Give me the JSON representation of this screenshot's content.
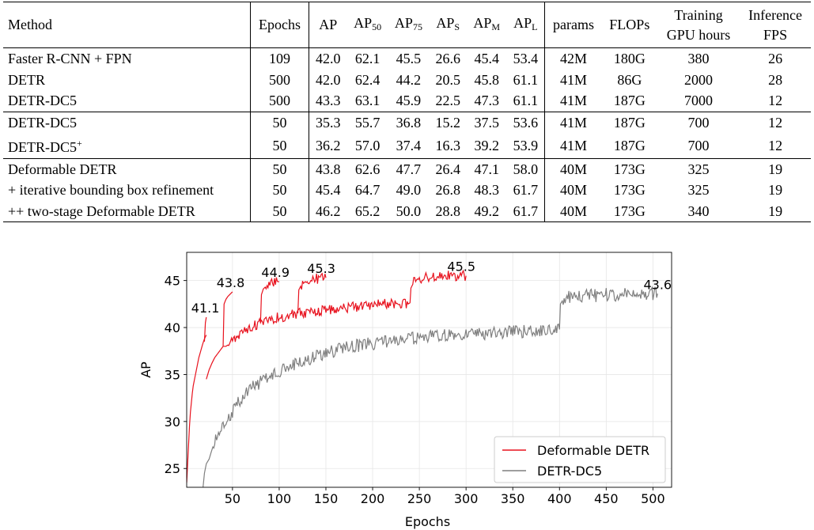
{
  "table": {
    "header": {
      "method": "Method",
      "epochs": "Epochs",
      "ap": "AP",
      "ap50": {
        "base": "AP",
        "sub": "50"
      },
      "ap75": {
        "base": "AP",
        "sub": "75"
      },
      "aps": {
        "base": "AP",
        "sub": "S"
      },
      "apm": {
        "base": "AP",
        "sub": "M"
      },
      "apl": {
        "base": "AP",
        "sub": "L"
      },
      "params": "params",
      "flops": "FLOPs",
      "training": {
        "line1": "Training",
        "line2": "GPU hours"
      },
      "inference": {
        "line1": "Inference",
        "line2": "FPS"
      }
    },
    "rows": [
      {
        "method": "Faster R-CNN + FPN",
        "sup": "",
        "epochs": "109",
        "ap": "42.0",
        "ap50": "62.1",
        "ap75": "45.5",
        "aps": "26.6",
        "apm": "45.4",
        "apl": "53.4",
        "params": "42M",
        "flops": "180G",
        "gpu_hours": "380",
        "fps": "26"
      },
      {
        "method": "DETR",
        "sup": "",
        "epochs": "500",
        "ap": "42.0",
        "ap50": "62.4",
        "ap75": "44.2",
        "aps": "20.5",
        "apm": "45.8",
        "apl": "61.1",
        "params": "41M",
        "flops": "86G",
        "gpu_hours": "2000",
        "fps": "28"
      },
      {
        "method": "DETR-DC5",
        "sup": "",
        "epochs": "500",
        "ap": "43.3",
        "ap50": "63.1",
        "ap75": "45.9",
        "aps": "22.5",
        "apm": "47.3",
        "apl": "61.1",
        "params": "41M",
        "flops": "187G",
        "gpu_hours": "7000",
        "fps": "12"
      },
      {
        "method": "DETR-DC5",
        "sup": "",
        "epochs": "50",
        "ap": "35.3",
        "ap50": "55.7",
        "ap75": "36.8",
        "aps": "15.2",
        "apm": "37.5",
        "apl": "53.6",
        "params": "41M",
        "flops": "187G",
        "gpu_hours": "700",
        "fps": "12"
      },
      {
        "method": "DETR-DC5",
        "sup": "+",
        "epochs": "50",
        "ap": "36.2",
        "ap50": "57.0",
        "ap75": "37.4",
        "aps": "16.3",
        "apm": "39.2",
        "apl": "53.9",
        "params": "41M",
        "flops": "187G",
        "gpu_hours": "700",
        "fps": "12"
      },
      {
        "method": "Deformable DETR",
        "sup": "",
        "epochs": "50",
        "ap": "43.8",
        "ap50": "62.6",
        "ap75": "47.7",
        "aps": "26.4",
        "apm": "47.1",
        "apl": "58.0",
        "params": "40M",
        "flops": "173G",
        "gpu_hours": "325",
        "fps": "19"
      },
      {
        "method": "+ iterative bounding box refinement",
        "sup": "",
        "epochs": "50",
        "ap": "45.4",
        "ap50": "64.7",
        "ap75": "49.0",
        "aps": "26.8",
        "apm": "48.3",
        "apl": "61.7",
        "params": "40M",
        "flops": "173G",
        "gpu_hours": "325",
        "fps": "19"
      },
      {
        "method": "++ two-stage Deformable DETR",
        "sup": "",
        "epochs": "50",
        "ap": "46.2",
        "ap50": "65.2",
        "ap75": "50.0",
        "aps": "28.8",
        "apm": "49.2",
        "apl": "61.7",
        "params": "40M",
        "flops": "173G",
        "gpu_hours": "340",
        "fps": "19"
      }
    ]
  },
  "chart_data": {
    "type": "line",
    "xlabel": "Epochs",
    "ylabel": "AP",
    "xlim": [
      1,
      520
    ],
    "ylim": [
      23,
      48
    ],
    "x_ticks": [
      "50",
      "100",
      "150",
      "200",
      "250",
      "300",
      "350",
      "400",
      "450",
      "500"
    ],
    "y_ticks": [
      "25",
      "30",
      "35",
      "40",
      "45"
    ],
    "grid": true,
    "legend_position": "bottom-right",
    "series": [
      {
        "name": "Deformable DETR",
        "color": "#e8121e",
        "segments": [
          {
            "x": [
              1,
              2,
              3,
              4,
              5,
              6,
              7,
              8,
              10,
              12,
              14,
              16,
              18,
              20,
              22
            ],
            "y": [
              23.5,
              25.5,
              27.5,
              29.5,
              31.0,
              32.0,
              33.0,
              33.8,
              34.8,
              35.8,
              36.8,
              37.5,
              38.2,
              38.8,
              39.2
            ]
          },
          {
            "x": [
              20,
              21,
              22
            ],
            "y": [
              38.5,
              40.5,
              41.1
            ]
          },
          {
            "x": [
              22,
              25,
              28,
              31,
              34,
              37,
              40,
              43,
              46,
              50,
              55,
              60,
              65,
              70,
              75,
              80,
              85,
              90,
              95,
              100,
              105,
              110,
              115,
              120,
              130,
              140,
              150,
              160,
              170,
              180,
              190,
              200,
              210,
              220,
              230,
              240
            ],
            "y": [
              34.5,
              35.5,
              36.2,
              36.8,
              37.2,
              37.6,
              38.0,
              38.0,
              38.2,
              38.6,
              39.0,
              39.4,
              39.8,
              40.1,
              40.3,
              40.5,
              40.7,
              40.9,
              41.0,
              41.1,
              41.2,
              41.3,
              41.4,
              41.5,
              41.6,
              41.7,
              41.9,
              42.0,
              42.1,
              42.2,
              42.3,
              42.4,
              42.5,
              42.5,
              42.6,
              42.6
            ]
          },
          {
            "x": [
              40,
              41,
              43,
              45,
              47,
              50
            ],
            "y": [
              38.0,
              42.5,
              43.0,
              43.3,
              43.5,
              43.8
            ]
          },
          {
            "x": [
              80,
              81,
              83,
              86,
              90,
              95,
              100
            ],
            "y": [
              40.5,
              43.5,
              44.1,
              44.4,
              44.6,
              44.8,
              44.9
            ]
          },
          {
            "x": [
              120,
              121,
              124,
              128,
              134,
              140,
              150
            ],
            "y": [
              41.5,
              44.0,
              44.6,
              44.9,
              45.1,
              45.2,
              45.3
            ]
          },
          {
            "x": [
              240,
              241,
              244,
              248,
              255,
              265,
              275,
              285,
              300
            ],
            "y": [
              42.6,
              44.2,
              44.8,
              45.1,
              45.3,
              45.4,
              45.5,
              45.5,
              45.5
            ]
          }
        ]
      },
      {
        "name": "DETR-DC5",
        "color": "#7f7f7f",
        "segments": [
          {
            "x": [
              18,
              20,
              22,
              25,
              28,
              32,
              36,
              40,
              45,
              50,
              55,
              60,
              65,
              70,
              80,
              90,
              100,
              110,
              120,
              130,
              140,
              150,
              160,
              170,
              180,
              190,
              200,
              210,
              220,
              230,
              240,
              250,
              260,
              270,
              280,
              290,
              300,
              310,
              320,
              330,
              340,
              350,
              360,
              370,
              380,
              390,
              400
            ],
            "y": [
              22.5,
              24.5,
              25.5,
              26.0,
              27.0,
              28.0,
              28.8,
              29.5,
              30.3,
              31.0,
              31.8,
              32.5,
              33.0,
              33.5,
              34.2,
              34.8,
              35.3,
              35.8,
              36.2,
              36.6,
              37.0,
              37.3,
              37.6,
              37.8,
              38.0,
              38.2,
              38.3,
              38.5,
              38.6,
              38.7,
              38.8,
              38.9,
              39.0,
              39.1,
              39.2,
              39.2,
              39.3,
              39.4,
              39.4,
              39.5,
              39.5,
              39.6,
              39.6,
              39.7,
              39.7,
              39.8,
              39.8
            ]
          },
          {
            "x": [
              400,
              401,
              404,
              410,
              420,
              430,
              440,
              450,
              460,
              470,
              480,
              490,
              500,
              505
            ],
            "y": [
              39.8,
              42.5,
              43.0,
              43.2,
              43.3,
              43.4,
              43.4,
              43.5,
              43.5,
              43.5,
              43.6,
              43.6,
              43.6,
              43.6
            ]
          }
        ]
      }
    ],
    "annotations": [
      {
        "text": "41.1",
        "x": 21,
        "y": 41.1
      },
      {
        "text": "43.8",
        "x": 48,
        "y": 43.8
      },
      {
        "text": "44.9",
        "x": 96,
        "y": 44.9
      },
      {
        "text": "45.3",
        "x": 145,
        "y": 45.3
      },
      {
        "text": "45.5",
        "x": 295,
        "y": 45.5
      },
      {
        "text": "43.6",
        "x": 505,
        "y": 43.6
      }
    ]
  }
}
